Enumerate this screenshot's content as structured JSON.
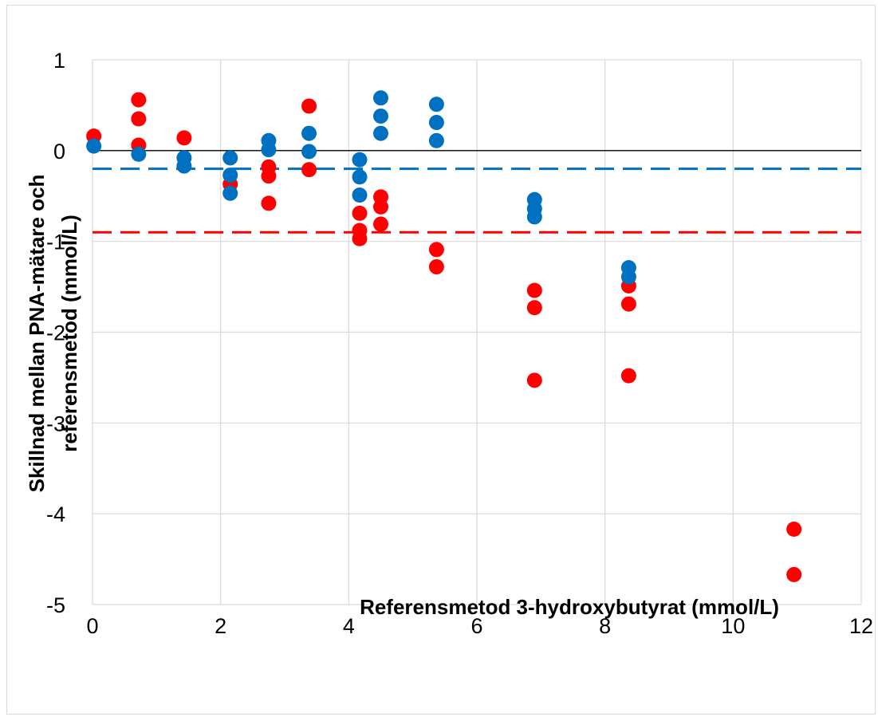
{
  "chart_data": {
    "type": "scatter",
    "title": "",
    "xlabel": "Referensmetod 3-hydroxybutyrat (mmol/L)",
    "ylabel_line1": "Skillnad mellan PNA-mätare och",
    "ylabel_line2": "referensmetod (mmol/L)",
    "xlim": [
      0,
      12
    ],
    "ylim": [
      -5,
      1
    ],
    "x_ticks": [
      0,
      2,
      4,
      6,
      8,
      10,
      12
    ],
    "y_ticks": [
      1,
      0,
      -1,
      -2,
      -3,
      -4,
      -5
    ],
    "grid": true,
    "legend": "none",
    "series": [
      {
        "color": "#ff0000",
        "points": [
          [
            0.02,
            0.16
          ],
          [
            0.72,
            0.56
          ],
          [
            0.72,
            0.35
          ],
          [
            0.72,
            0.06
          ],
          [
            1.43,
            0.14
          ],
          [
            2.15,
            -0.37
          ],
          [
            2.75,
            -0.18
          ],
          [
            2.75,
            -0.28
          ],
          [
            2.75,
            -0.58
          ],
          [
            3.38,
            0.49
          ],
          [
            3.38,
            -0.21
          ],
          [
            4.17,
            -0.69
          ],
          [
            4.17,
            -0.88
          ],
          [
            4.17,
            -0.97
          ],
          [
            4.5,
            -0.51
          ],
          [
            4.5,
            -0.62
          ],
          [
            4.5,
            -0.81
          ],
          [
            5.37,
            -1.09
          ],
          [
            5.37,
            -1.28
          ],
          [
            6.9,
            -1.54
          ],
          [
            6.9,
            -1.73
          ],
          [
            6.9,
            -2.53
          ],
          [
            8.37,
            -1.49
          ],
          [
            8.37,
            -1.69
          ],
          [
            8.37,
            -2.48
          ],
          [
            10.95,
            -4.17
          ],
          [
            10.95,
            -4.67
          ]
        ]
      },
      {
        "color": "#0070c0",
        "points": [
          [
            0.02,
            0.05
          ],
          [
            0.72,
            -0.04
          ],
          [
            1.43,
            -0.08
          ],
          [
            1.43,
            -0.17
          ],
          [
            2.15,
            -0.08
          ],
          [
            2.15,
            -0.27
          ],
          [
            2.15,
            -0.47
          ],
          [
            2.75,
            0.11
          ],
          [
            2.75,
            0.01
          ],
          [
            3.38,
            0.19
          ],
          [
            3.38,
            -0.01
          ],
          [
            4.17,
            -0.1
          ],
          [
            4.17,
            -0.29
          ],
          [
            4.17,
            -0.49
          ],
          [
            4.5,
            0.58
          ],
          [
            4.5,
            0.38
          ],
          [
            4.5,
            0.19
          ],
          [
            5.37,
            0.51
          ],
          [
            5.37,
            0.31
          ],
          [
            5.37,
            0.11
          ],
          [
            6.9,
            -0.54
          ],
          [
            6.9,
            -0.64
          ],
          [
            6.9,
            -0.73
          ],
          [
            8.37,
            -1.29
          ],
          [
            8.37,
            -1.39
          ]
        ]
      }
    ],
    "reference_lines": [
      {
        "y": 0,
        "color": "#000000",
        "style": "solid"
      },
      {
        "y": -0.2,
        "color": "#0070c0",
        "style": "dashed"
      },
      {
        "y": -0.9,
        "color": "#ff0000",
        "style": "dashed"
      }
    ]
  }
}
